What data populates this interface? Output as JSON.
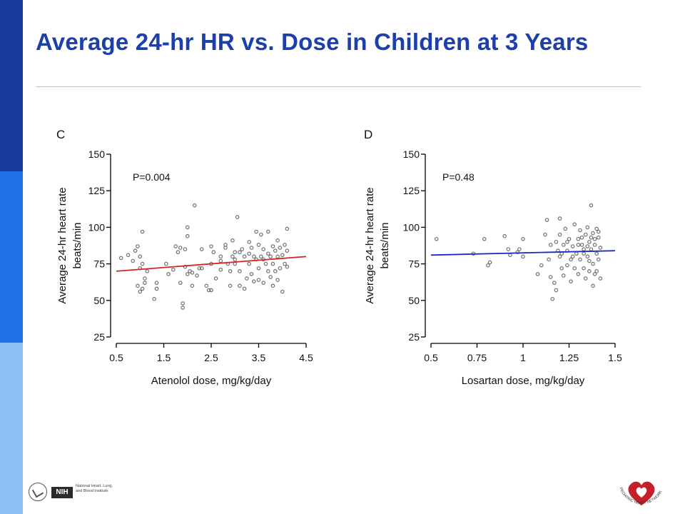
{
  "slide": {
    "title": "Average 24-hr HR vs. Dose in Children at 3 Years"
  },
  "colors": {
    "title": "#1c3faa",
    "sidebar": [
      "#1a3a9c",
      "#1f6fe6",
      "#8ec0f5"
    ],
    "rule": "#9cc7ec",
    "point": "#707070",
    "fit_c": "#dd2222",
    "fit_d": "#1b2bc4"
  },
  "footer": {
    "nih_badge": "NIH",
    "nih_lines": [
      "National Heart, Lung,",
      "and Blood Institute"
    ],
    "phn_logo_text": "PEDIATRIC HEART NETWORK"
  },
  "chart_data": [
    {
      "type": "scatter",
      "panel_label": "C",
      "annotation": "P=0.004",
      "xlabel": "Atenolol dose, mg/kg/day",
      "ylabel": "Average 24-hr heart rate beats/min",
      "ylabel_lines": [
        "Average 24-hr heart rate",
        "beats/min"
      ],
      "xlim": [
        0.5,
        4.5
      ],
      "ylim": [
        25,
        150
      ],
      "xticks": [
        "0.5",
        "1.5",
        "2.5",
        "3.5",
        "4.5"
      ],
      "xtick_values": [
        0.5,
        1.5,
        2.5,
        3.5,
        4.5
      ],
      "yticks": [
        "25",
        "50",
        "75",
        "100",
        "125",
        "150"
      ],
      "ytick_values": [
        25,
        50,
        75,
        100,
        125,
        150
      ],
      "fit_line": {
        "x": [
          0.5,
          4.5
        ],
        "y": [
          70,
          80
        ]
      },
      "points": [
        [
          0.6,
          79
        ],
        [
          0.75,
          81
        ],
        [
          0.85,
          77
        ],
        [
          0.9,
          84
        ],
        [
          0.95,
          87
        ],
        [
          1.0,
          72
        ],
        [
          1.0,
          80
        ],
        [
          1.05,
          97
        ],
        [
          1.05,
          58
        ],
        [
          0.95,
          60
        ],
        [
          1.0,
          56
        ],
        [
          1.1,
          65
        ],
        [
          1.1,
          62
        ],
        [
          1.15,
          70
        ],
        [
          1.05,
          75
        ],
        [
          1.3,
          51
        ],
        [
          1.35,
          62
        ],
        [
          1.35,
          58
        ],
        [
          1.55,
          75
        ],
        [
          1.6,
          68
        ],
        [
          1.7,
          71
        ],
        [
          1.75,
          87
        ],
        [
          1.8,
          83
        ],
        [
          1.85,
          86
        ],
        [
          1.85,
          62
        ],
        [
          1.9,
          48
        ],
        [
          1.9,
          45
        ],
        [
          1.95,
          73
        ],
        [
          1.95,
          85
        ],
        [
          2.0,
          100
        ],
        [
          2.0,
          94
        ],
        [
          2.0,
          68
        ],
        [
          2.05,
          70
        ],
        [
          2.1,
          69
        ],
        [
          2.1,
          60
        ],
        [
          2.15,
          115
        ],
        [
          2.2,
          67
        ],
        [
          2.25,
          72
        ],
        [
          2.3,
          85
        ],
        [
          2.3,
          72
        ],
        [
          2.4,
          60
        ],
        [
          2.45,
          57
        ],
        [
          2.5,
          57
        ],
        [
          2.5,
          75
        ],
        [
          2.5,
          87
        ],
        [
          2.55,
          83
        ],
        [
          2.6,
          65
        ],
        [
          2.7,
          71
        ],
        [
          2.7,
          80
        ],
        [
          2.8,
          86
        ],
        [
          2.8,
          88
        ],
        [
          2.85,
          75
        ],
        [
          2.9,
          60
        ],
        [
          2.9,
          70
        ],
        [
          2.95,
          91
        ],
        [
          2.95,
          80
        ],
        [
          3.0,
          83
        ],
        [
          3.0,
          75
        ],
        [
          3.05,
          107
        ],
        [
          3.1,
          83
        ],
        [
          3.1,
          70
        ],
        [
          3.1,
          60
        ],
        [
          3.15,
          85
        ],
        [
          3.2,
          80
        ],
        [
          3.2,
          58
        ],
        [
          3.25,
          65
        ],
        [
          3.3,
          90
        ],
        [
          3.3,
          75
        ],
        [
          3.35,
          86
        ],
        [
          3.35,
          68
        ],
        [
          3.4,
          80
        ],
        [
          3.4,
          63
        ],
        [
          3.45,
          97
        ],
        [
          3.45,
          78
        ],
        [
          3.5,
          88
        ],
        [
          3.5,
          72
        ],
        [
          3.55,
          95
        ],
        [
          3.55,
          80
        ],
        [
          3.6,
          85
        ],
        [
          3.6,
          62
        ],
        [
          3.65,
          75
        ],
        [
          3.7,
          97
        ],
        [
          3.7,
          82
        ],
        [
          3.7,
          70
        ],
        [
          3.75,
          80
        ],
        [
          3.75,
          66
        ],
        [
          3.8,
          87
        ],
        [
          3.8,
          75
        ],
        [
          3.85,
          84
        ],
        [
          3.85,
          70
        ],
        [
          3.9,
          80
        ],
        [
          3.9,
          64
        ],
        [
          3.95,
          86
        ],
        [
          3.95,
          72
        ],
        [
          4.0,
          56
        ],
        [
          4.0,
          81
        ],
        [
          4.05,
          88
        ],
        [
          4.05,
          75
        ],
        [
          4.1,
          99
        ],
        [
          4.1,
          84
        ],
        [
          4.1,
          73
        ],
        [
          3.6,
          78
        ],
        [
          3.3,
          82
        ],
        [
          3.0,
          78
        ],
        [
          2.7,
          77
        ],
        [
          3.5,
          64
        ],
        [
          3.9,
          91
        ],
        [
          3.8,
          60
        ]
      ]
    },
    {
      "type": "scatter",
      "panel_label": "D",
      "annotation": "P=0.48",
      "xlabel": "Losartan dose, mg/kg/day",
      "ylabel": "Average 24-hr heart rate beats/min",
      "ylabel_lines": [
        "Average 24-hr heart rate",
        "beats/min"
      ],
      "xlim": [
        0.5,
        1.5
      ],
      "ylim": [
        25,
        150
      ],
      "xticks": [
        "0.5",
        "0.75",
        "1",
        "1.25",
        "1.5"
      ],
      "xtick_values": [
        0.5,
        0.75,
        1.0,
        1.25,
        1.5
      ],
      "yticks": [
        "25",
        "50",
        "75",
        "100",
        "125",
        "150"
      ],
      "ytick_values": [
        25,
        50,
        75,
        100,
        125,
        150
      ],
      "fit_line": {
        "x": [
          0.5,
          1.5
        ],
        "y": [
          81,
          84
        ]
      },
      "points": [
        [
          0.53,
          92
        ],
        [
          0.73,
          82
        ],
        [
          0.79,
          92
        ],
        [
          0.81,
          74
        ],
        [
          0.82,
          76
        ],
        [
          0.9,
          94
        ],
        [
          0.92,
          85
        ],
        [
          0.93,
          81
        ],
        [
          0.97,
          83
        ],
        [
          0.98,
          85
        ],
        [
          1.0,
          80
        ],
        [
          1.0,
          92
        ],
        [
          1.08,
          68
        ],
        [
          1.1,
          74
        ],
        [
          1.12,
          95
        ],
        [
          1.13,
          105
        ],
        [
          1.14,
          78
        ],
        [
          1.15,
          88
        ],
        [
          1.15,
          66
        ],
        [
          1.16,
          51
        ],
        [
          1.17,
          62
        ],
        [
          1.18,
          90
        ],
        [
          1.18,
          57
        ],
        [
          1.19,
          84
        ],
        [
          1.2,
          106
        ],
        [
          1.2,
          95
        ],
        [
          1.2,
          80
        ],
        [
          1.21,
          72
        ],
        [
          1.22,
          88
        ],
        [
          1.22,
          67
        ],
        [
          1.23,
          99
        ],
        [
          1.24,
          84
        ],
        [
          1.24,
          74
        ],
        [
          1.25,
          92
        ],
        [
          1.26,
          78
        ],
        [
          1.26,
          63
        ],
        [
          1.27,
          87
        ],
        [
          1.28,
          102
        ],
        [
          1.28,
          72
        ],
        [
          1.29,
          82
        ],
        [
          1.3,
          92
        ],
        [
          1.3,
          68
        ],
        [
          1.31,
          98
        ],
        [
          1.31,
          78
        ],
        [
          1.32,
          88
        ],
        [
          1.33,
          72
        ],
        [
          1.33,
          85
        ],
        [
          1.34,
          95
        ],
        [
          1.34,
          65
        ],
        [
          1.35,
          100
        ],
        [
          1.35,
          80
        ],
        [
          1.36,
          90
        ],
        [
          1.36,
          70
        ],
        [
          1.37,
          115
        ],
        [
          1.37,
          85
        ],
        [
          1.38,
          96
        ],
        [
          1.38,
          75
        ],
        [
          1.38,
          60
        ],
        [
          1.39,
          88
        ],
        [
          1.39,
          68
        ],
        [
          1.4,
          99
        ],
        [
          1.4,
          82
        ],
        [
          1.4,
          70
        ],
        [
          1.41,
          93
        ],
        [
          1.41,
          78
        ],
        [
          1.42,
          86
        ],
        [
          1.42,
          65
        ],
        [
          1.36,
          77
        ],
        [
          1.33,
          82
        ],
        [
          1.3,
          88
        ],
        [
          1.27,
          80
        ],
        [
          1.24,
          90
        ],
        [
          1.21,
          82
        ],
        [
          1.39,
          92
        ],
        [
          1.41,
          97
        ],
        [
          1.37,
          93
        ],
        [
          1.35,
          87
        ],
        [
          1.32,
          93
        ]
      ]
    }
  ]
}
